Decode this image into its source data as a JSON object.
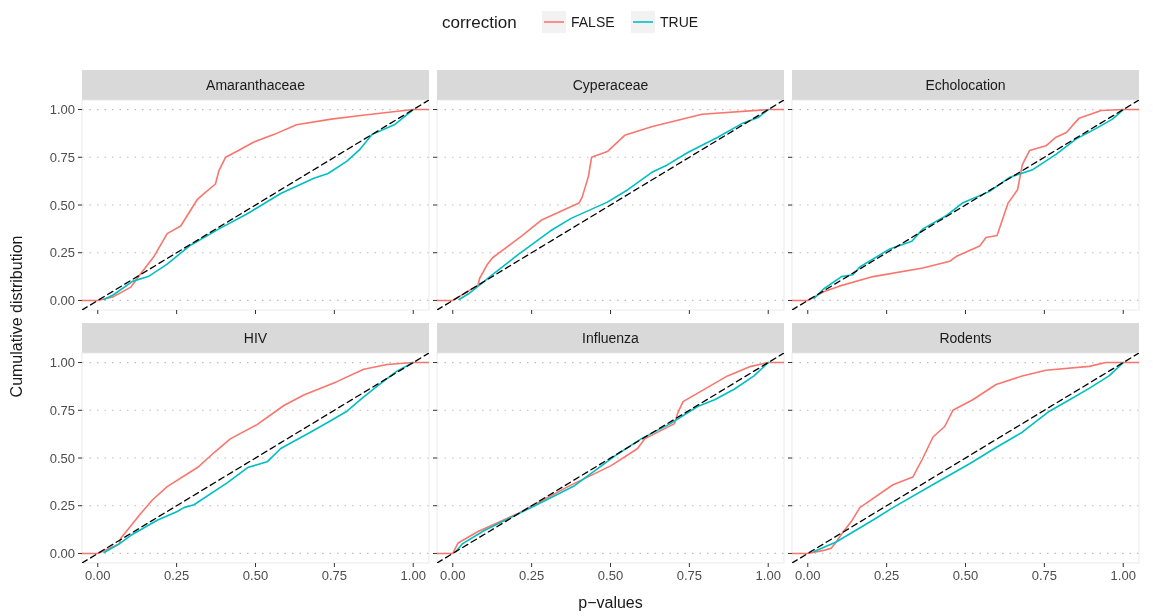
{
  "chart_data": [
    {
      "type": "line",
      "title": "Amaranthaceae",
      "ylabel": "Cumulative distribution",
      "legend_title": "correction",
      "legend": "top",
      "grid": "y",
      "tick_labels": "y",
      "xlim": [
        -0.05,
        1.05
      ],
      "ylim": [
        -0.05,
        1.05
      ],
      "xticks": [
        0,
        0.25,
        0.5,
        0.75,
        1
      ],
      "yticks": [
        {
          "value": 0,
          "label": "0.00"
        },
        {
          "value": 0.25,
          "label": "0.25"
        },
        {
          "value": 0.5,
          "label": "0.50"
        },
        {
          "value": 0.75,
          "label": "0.75"
        },
        {
          "value": 1,
          "label": "1.00"
        }
      ],
      "series": [
        {
          "name": "FALSE",
          "color": "#f8766d",
          "x": [
            -0.05,
            0,
            0.05,
            0.105,
            0.136,
            0.178,
            0.22,
            0.263,
            0.316,
            0.33,
            0.373,
            0.384,
            0.405,
            0.44,
            0.495,
            0.56,
            0.63,
            0.74,
            0.84,
            1,
            1.05
          ],
          "values": [
            0,
            0,
            0.02,
            0.07,
            0.14,
            0.23,
            0.35,
            0.39,
            0.53,
            0.55,
            0.61,
            0.68,
            0.75,
            0.78,
            0.83,
            0.87,
            0.92,
            0.95,
            0.97,
            1,
            1
          ]
        },
        {
          "name": "TRUE",
          "color": "#00bfc4",
          "x": [
            0.02,
            0.05,
            0.11,
            0.16,
            0.22,
            0.29,
            0.39,
            0.47,
            0.58,
            0.685,
            0.73,
            0.79,
            0.83,
            0.87,
            0.94,
            1
          ],
          "values": [
            0.005,
            0.03,
            0.1,
            0.125,
            0.19,
            0.285,
            0.38,
            0.45,
            0.56,
            0.64,
            0.665,
            0.73,
            0.79,
            0.87,
            0.92,
            1
          ]
        },
        {
          "color": "#000000",
          "line_style": "dashed",
          "x": [
            -0.05,
            1.05
          ],
          "values": [
            -0.05,
            1.05
          ]
        }
      ]
    },
    {
      "type": "line",
      "title": "Cyperaceae",
      "grid": "y",
      "tick_labels": false,
      "xlim": [
        -0.05,
        1.05
      ],
      "ylim": [
        -0.05,
        1.05
      ],
      "xticks": [
        0,
        0.25,
        0.5,
        0.75,
        1
      ],
      "yticks": [
        0,
        0.25,
        0.5,
        0.75,
        1
      ],
      "series": [
        {
          "color": "#f8766d",
          "x": [
            -0.05,
            0,
            0.08,
            0.085,
            0.11,
            0.127,
            0.22,
            0.28,
            0.4,
            0.41,
            0.43,
            0.44,
            0.49,
            0.545,
            0.63,
            0.79,
            1,
            1.05
          ],
          "values": [
            0,
            0,
            0.08,
            0.115,
            0.19,
            0.225,
            0.34,
            0.42,
            0.51,
            0.54,
            0.65,
            0.75,
            0.78,
            0.865,
            0.91,
            0.975,
            1,
            1
          ]
        },
        {
          "color": "#00bfc4",
          "x": [
            0.02,
            0.05,
            0.13,
            0.207,
            0.31,
            0.375,
            0.49,
            0.555,
            0.63,
            0.68,
            0.745,
            0.84,
            0.915,
            0.97,
            1
          ],
          "values": [
            0.005,
            0.035,
            0.14,
            0.24,
            0.365,
            0.43,
            0.515,
            0.58,
            0.67,
            0.71,
            0.775,
            0.855,
            0.925,
            0.96,
            1
          ]
        },
        {
          "color": "#000000",
          "line_style": "dashed",
          "x": [
            -0.05,
            1.05
          ],
          "values": [
            -0.05,
            1.05
          ]
        }
      ]
    },
    {
      "type": "line",
      "title": "Echolocation",
      "grid": "y",
      "tick_labels": false,
      "xlim": [
        -0.05,
        1.05
      ],
      "ylim": [
        -0.05,
        1.05
      ],
      "xticks": [
        0,
        0.25,
        0.5,
        0.75,
        1
      ],
      "yticks": [
        0,
        0.25,
        0.5,
        0.75,
        1
      ],
      "series": [
        {
          "color": "#f8766d",
          "x": [
            -0.05,
            0,
            0.05,
            0.1,
            0.207,
            0.365,
            0.45,
            0.47,
            0.545,
            0.565,
            0.6,
            0.635,
            0.665,
            0.68,
            0.703,
            0.755,
            0.787,
            0.82,
            0.86,
            0.93,
            1,
            1.05
          ],
          "values": [
            0,
            0,
            0.045,
            0.075,
            0.125,
            0.17,
            0.205,
            0.23,
            0.285,
            0.33,
            0.34,
            0.51,
            0.58,
            0.71,
            0.785,
            0.81,
            0.855,
            0.88,
            0.955,
            0.995,
            1,
            1
          ]
        },
        {
          "color": "#00bfc4",
          "x": [
            0.02,
            0.05,
            0.107,
            0.143,
            0.165,
            0.26,
            0.33,
            0.365,
            0.44,
            0.49,
            0.575,
            0.64,
            0.713,
            0.787,
            0.85,
            0.913,
            0.966,
            1
          ],
          "values": [
            0.01,
            0.06,
            0.125,
            0.135,
            0.175,
            0.27,
            0.31,
            0.375,
            0.445,
            0.51,
            0.57,
            0.645,
            0.685,
            0.765,
            0.845,
            0.9,
            0.95,
            1
          ]
        },
        {
          "color": "#000000",
          "line_style": "dashed",
          "x": [
            -0.05,
            1.05
          ],
          "values": [
            -0.05,
            1.05
          ]
        }
      ]
    },
    {
      "type": "line",
      "title": "HIV",
      "grid": "y",
      "xlim": [
        -0.05,
        1.05
      ],
      "ylim": [
        -0.05,
        1.05
      ],
      "xticks": [
        {
          "value": 0,
          "label": "0.00"
        },
        {
          "value": 0.25,
          "label": "0.25"
        },
        {
          "value": 0.5,
          "label": "0.50"
        },
        {
          "value": 0.75,
          "label": "0.75"
        },
        {
          "value": 1,
          "label": "1.00"
        }
      ],
      "yticks": [
        {
          "value": 0,
          "label": "0.00"
        },
        {
          "value": 0.25,
          "label": "0.25"
        },
        {
          "value": 0.5,
          "label": "0.50"
        },
        {
          "value": 0.75,
          "label": "0.75"
        },
        {
          "value": 1,
          "label": "1.00"
        }
      ],
      "series": [
        {
          "color": "#f8766d",
          "x": [
            -0.05,
            0,
            0.068,
            0.073,
            0.137,
            0.173,
            0.22,
            0.316,
            0.37,
            0.42,
            0.505,
            0.59,
            0.653,
            0.758,
            0.843,
            0.917,
            1,
            1.05
          ],
          "values": [
            0,
            0,
            0.05,
            0.08,
            0.21,
            0.28,
            0.35,
            0.45,
            0.53,
            0.6,
            0.675,
            0.775,
            0.83,
            0.9,
            0.965,
            0.99,
            1,
            1
          ]
        },
        {
          "color": "#00bfc4",
          "x": [
            0.02,
            0.068,
            0.105,
            0.19,
            0.252,
            0.273,
            0.305,
            0.41,
            0.475,
            0.537,
            0.58,
            0.674,
            0.727,
            0.79,
            0.843,
            0.885,
            0.948,
            1
          ],
          "values": [
            0.005,
            0.05,
            0.095,
            0.175,
            0.22,
            0.24,
            0.255,
            0.37,
            0.45,
            0.48,
            0.55,
            0.635,
            0.685,
            0.745,
            0.82,
            0.875,
            0.955,
            1
          ]
        },
        {
          "color": "#000000",
          "line_style": "dashed",
          "x": [
            -0.05,
            1.05
          ],
          "values": [
            -0.05,
            1.05
          ]
        }
      ]
    },
    {
      "type": "line",
      "title": "Influenza",
      "xlabel": "p−values",
      "grid": "y",
      "tick_labels": "x",
      "xlim": [
        -0.05,
        1.05
      ],
      "ylim": [
        -0.05,
        1.05
      ],
      "xticks": [
        {
          "value": 0,
          "label": "0.00"
        },
        {
          "value": 0.25,
          "label": "0.25"
        },
        {
          "value": 0.5,
          "label": "0.50"
        },
        {
          "value": 0.75,
          "label": "0.75"
        },
        {
          "value": 1,
          "label": "1.00"
        }
      ],
      "yticks": [
        0,
        0.25,
        0.5,
        0.75,
        1
      ],
      "series": [
        {
          "color": "#f8766d",
          "x": [
            -0.05,
            0,
            0.017,
            0.08,
            0.207,
            0.365,
            0.502,
            0.586,
            0.608,
            0.703,
            0.713,
            0.73,
            0.808,
            0.871,
            0.945,
            1,
            1.05
          ],
          "values": [
            0,
            0,
            0.055,
            0.115,
            0.21,
            0.35,
            0.46,
            0.55,
            0.6,
            0.68,
            0.735,
            0.795,
            0.87,
            0.93,
            0.98,
            1,
            1
          ]
        },
        {
          "color": "#00bfc4",
          "x": [
            0.01,
            0.03,
            0.1,
            0.26,
            0.386,
            0.513,
            0.597,
            0.69,
            0.776,
            0.83,
            0.892,
            0.955,
            1
          ],
          "values": [
            0.01,
            0.05,
            0.12,
            0.25,
            0.355,
            0.51,
            0.6,
            0.68,
            0.77,
            0.805,
            0.86,
            0.93,
            1
          ]
        },
        {
          "color": "#000000",
          "line_style": "dashed",
          "x": [
            -0.05,
            1.05
          ],
          "values": [
            -0.05,
            1.05
          ]
        }
      ]
    },
    {
      "type": "line",
      "title": "Rodents",
      "grid": "y",
      "tick_labels": "x",
      "xlim": [
        -0.05,
        1.05
      ],
      "ylim": [
        -0.05,
        1.05
      ],
      "xticks": [
        {
          "value": 0,
          "label": "0.00"
        },
        {
          "value": 0.25,
          "label": "0.25"
        },
        {
          "value": 0.5,
          "label": "0.50"
        },
        {
          "value": 0.75,
          "label": "0.75"
        },
        {
          "value": 1,
          "label": "1.00"
        }
      ],
      "yticks": [
        0,
        0.25,
        0.5,
        0.75,
        1
      ],
      "series": [
        {
          "color": "#f8766d",
          "x": [
            -0.05,
            0,
            0.05,
            0.075,
            0.09,
            0.112,
            0.138,
            0.165,
            0.196,
            0.27,
            0.333,
            0.365,
            0.397,
            0.434,
            0.46,
            0.523,
            0.597,
            0.68,
            0.755,
            0.892,
            0.945,
            1,
            1.05
          ],
          "values": [
            0,
            0,
            0.016,
            0.028,
            0.06,
            0.113,
            0.167,
            0.24,
            0.275,
            0.36,
            0.4,
            0.5,
            0.61,
            0.665,
            0.75,
            0.805,
            0.885,
            0.93,
            0.96,
            0.98,
            1,
            1,
            1
          ]
        },
        {
          "color": "#00bfc4",
          "x": [
            0.02,
            0.09,
            0.207,
            0.27,
            0.407,
            0.513,
            0.597,
            0.68,
            0.766,
            0.83,
            0.892,
            0.955,
            1
          ],
          "values": [
            0.01,
            0.06,
            0.175,
            0.24,
            0.37,
            0.47,
            0.555,
            0.635,
            0.745,
            0.805,
            0.865,
            0.93,
            1
          ]
        },
        {
          "color": "#000000",
          "line_style": "dashed",
          "x": [
            -0.05,
            1.05
          ],
          "values": [
            -0.05,
            1.05
          ]
        }
      ]
    }
  ]
}
